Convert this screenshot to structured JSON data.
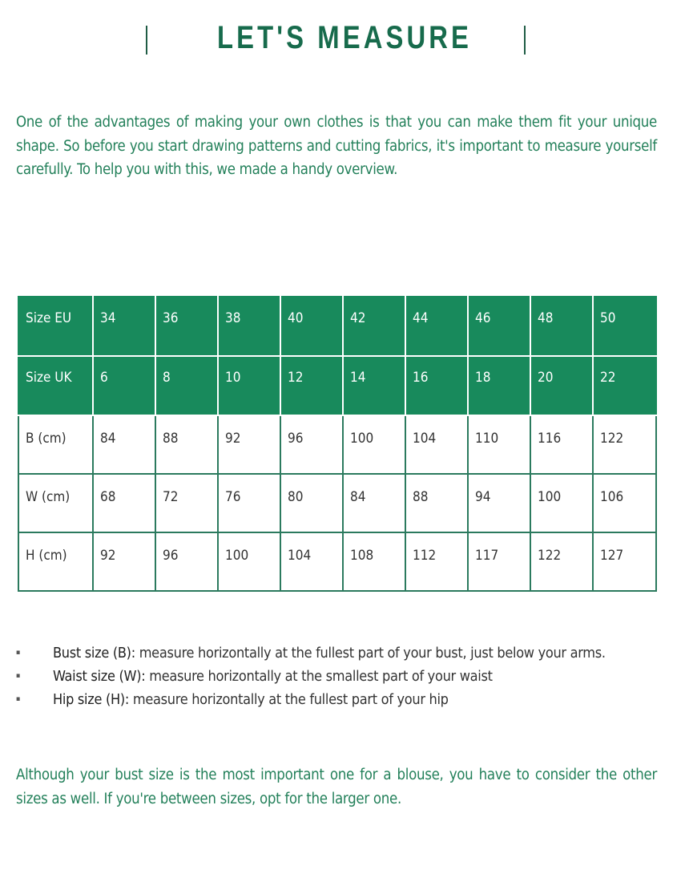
{
  "title": "LET'S MEASURE",
  "intro": "One of the advantages of making your own clothes is that you can make them fit your unique shape. So before you start drawing patterns and cutting fabrics, it's important to measure yourself carefully. To help you with this, we made a handy overview.",
  "table": {
    "header_rows": [
      {
        "label": "Size EU",
        "values": [
          "34",
          "36",
          "38",
          "40",
          "42",
          "44",
          "46",
          "48",
          "50"
        ]
      },
      {
        "label": "Size UK",
        "values": [
          "6",
          "8",
          "10",
          "12",
          "14",
          "16",
          "18",
          "20",
          "22"
        ]
      }
    ],
    "rows": [
      {
        "label": "B (cm)",
        "values": [
          "84",
          "88",
          "92",
          "96",
          "100",
          "104",
          "110",
          "116",
          "122"
        ]
      },
      {
        "label": "W (cm)",
        "values": [
          "68",
          "72",
          "76",
          "80",
          "84",
          "88",
          "94",
          "100",
          "106"
        ]
      },
      {
        "label": "H (cm)",
        "values": [
          "92",
          "96",
          "100",
          "104",
          "108",
          "112",
          "117",
          "122",
          "127"
        ]
      }
    ]
  },
  "bullets": [
    {
      "term": "Bust size (B):",
      "text": " measure horizontally at the fullest part of your bust, just below your arms."
    },
    {
      "term": "Waist size (W):",
      "text": " measure horizontally at the smallest part of your waist"
    },
    {
      "term": "Hip size (H):",
      "text": " measure horizontally at the fullest part of your hip"
    }
  ],
  "bullet_symbol": "▪",
  "outro": "Although your bust size is the most important one for a blouse, you have to consider the other sizes as well. If you're between sizes, opt for the larger one.",
  "colors": {
    "accent": "#188a5c",
    "text_green": "#23805a",
    "title": "#176b4c"
  }
}
